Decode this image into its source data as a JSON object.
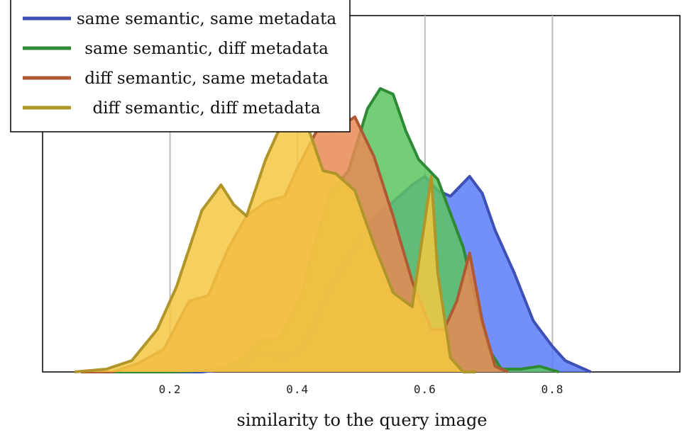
{
  "chart_data": {
    "type": "area",
    "title": "",
    "xlabel": "similarity to the query image",
    "ylabel": "",
    "xlim": [
      0.0,
      1.0
    ],
    "ylim": [
      0,
      1.0
    ],
    "xticks": [
      0.2,
      0.4,
      0.6,
      0.8
    ],
    "xtick_labels": [
      "0.2",
      "0.4",
      "0.6",
      "0.8"
    ],
    "grid": "vertical",
    "legend_position": "top-left",
    "series": [
      {
        "name": "same semantic, same metadata",
        "stroke": "#3d50b4",
        "fill": "#5b7cf9",
        "x": [
          0.15,
          0.25,
          0.29,
          0.32,
          0.34,
          0.36,
          0.38,
          0.4,
          0.42,
          0.45,
          0.48,
          0.52,
          0.55,
          0.58,
          0.6,
          0.62,
          0.64,
          0.67,
          0.69,
          0.71,
          0.74,
          0.77,
          0.8,
          0.82,
          0.84,
          0.86
        ],
        "y": [
          0.0,
          0.0,
          0.01,
          0.03,
          0.07,
          0.06,
          0.05,
          0.07,
          0.13,
          0.29,
          0.4,
          0.54,
          0.6,
          0.66,
          0.69,
          0.64,
          0.62,
          0.69,
          0.63,
          0.5,
          0.35,
          0.18,
          0.09,
          0.04,
          0.02,
          0.0
        ]
      },
      {
        "name": "same semantic, diff metadata",
        "stroke": "#2f8a36",
        "fill": "#5dc460",
        "x": [
          0.1,
          0.2,
          0.25,
          0.29,
          0.32,
          0.34,
          0.37,
          0.39,
          0.41,
          0.42,
          0.44,
          0.45,
          0.48,
          0.51,
          0.53,
          0.55,
          0.57,
          0.59,
          0.62,
          0.64,
          0.66,
          0.68,
          0.7,
          0.72,
          0.75,
          0.78,
          0.81
        ],
        "y": [
          0.0,
          0.0,
          0.005,
          0.02,
          0.06,
          0.11,
          0.12,
          0.2,
          0.3,
          0.4,
          0.55,
          0.63,
          0.71,
          0.93,
          1.0,
          0.98,
          0.85,
          0.75,
          0.68,
          0.56,
          0.44,
          0.25,
          0.08,
          0.01,
          0.01,
          0.02,
          0.0
        ]
      },
      {
        "name": "diff semantic, same metadata",
        "stroke": "#b05a35",
        "fill": "#e88a55",
        "x": [
          0.06,
          0.11,
          0.15,
          0.19,
          0.23,
          0.26,
          0.29,
          0.32,
          0.35,
          0.38,
          0.4,
          0.43,
          0.45,
          0.47,
          0.49,
          0.52,
          0.55,
          0.58,
          0.61,
          0.63,
          0.65,
          0.67,
          0.69,
          0.71,
          0.73
        ],
        "y": [
          0.0,
          0.0,
          0.03,
          0.08,
          0.25,
          0.27,
          0.43,
          0.55,
          0.6,
          0.62,
          0.72,
          0.85,
          0.85,
          0.87,
          0.9,
          0.76,
          0.55,
          0.32,
          0.15,
          0.15,
          0.25,
          0.42,
          0.18,
          0.02,
          0.0
        ]
      },
      {
        "name": "diff semantic, diff metadata",
        "stroke": "#b0962a",
        "fill": "#f5c842",
        "x": [
          0.05,
          0.1,
          0.14,
          0.18,
          0.21,
          0.25,
          0.28,
          0.3,
          0.32,
          0.35,
          0.37,
          0.39,
          0.4,
          0.42,
          0.44,
          0.46,
          0.49,
          0.52,
          0.55,
          0.58,
          0.61,
          0.62,
          0.64,
          0.66,
          0.68
        ],
        "y": [
          0.0,
          0.01,
          0.04,
          0.15,
          0.3,
          0.57,
          0.66,
          0.59,
          0.55,
          0.75,
          0.85,
          0.91,
          0.94,
          0.84,
          0.71,
          0.7,
          0.64,
          0.45,
          0.28,
          0.23,
          0.69,
          0.35,
          0.05,
          0.0,
          0.0
        ]
      }
    ]
  }
}
